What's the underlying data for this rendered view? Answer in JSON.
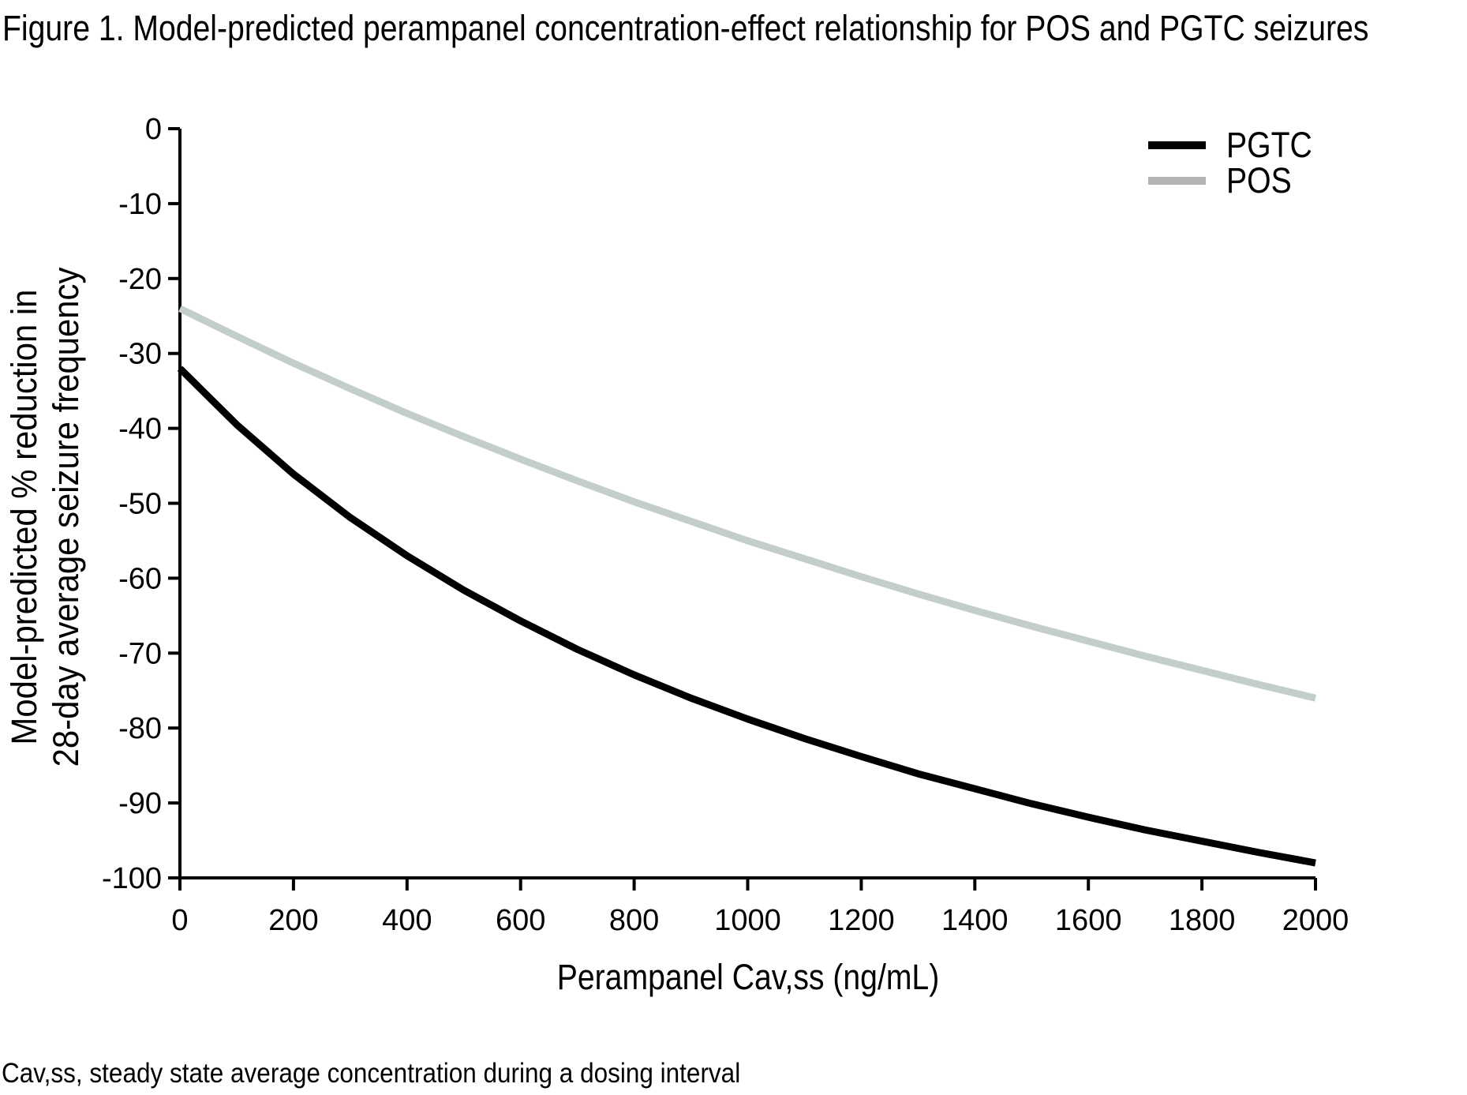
{
  "figure": {
    "title": "Figure 1. Model-predicted perampanel concentration-effect relationship for POS and PGTC seizures",
    "footnote": "Cav,ss, steady state average concentration during a dosing interval"
  },
  "chart_data": {
    "type": "line",
    "title": "Figure 1. Model-predicted perampanel concentration-effect relationship for POS and PGTC seizures",
    "xlabel": "Perampanel Cav,ss (ng/mL)",
    "ylabel": "Model-predicted % reduction in 28-day average seizure frequency",
    "ylabel_lines": [
      "Model-predicted % reduction in",
      "28-day average seizure frequency"
    ],
    "xlim": [
      0,
      2000
    ],
    "ylim": [
      -100,
      0
    ],
    "x_ticks": [
      0,
      200,
      400,
      600,
      800,
      1000,
      1200,
      1400,
      1600,
      1800,
      2000
    ],
    "y_ticks": [
      0,
      -10,
      -20,
      -30,
      -40,
      -50,
      -60,
      -70,
      -80,
      -90,
      -100
    ],
    "grid": false,
    "legend_position": "top-right",
    "axis_color": "#000000",
    "x": [
      0,
      100,
      200,
      300,
      400,
      500,
      600,
      700,
      800,
      900,
      1000,
      1100,
      1200,
      1300,
      1400,
      1500,
      1600,
      1700,
      1800,
      1900,
      2000
    ],
    "series": [
      {
        "name": "PGTC",
        "color": "#000000",
        "legend_color": "#000000",
        "values": [
          -32.0,
          -39.5,
          -46.1,
          -51.9,
          -57.0,
          -61.6,
          -65.7,
          -69.5,
          -72.9,
          -76.0,
          -78.8,
          -81.4,
          -83.8,
          -86.1,
          -88.1,
          -90.1,
          -91.9,
          -93.6,
          -95.1,
          -96.6,
          -98.0
        ]
      },
      {
        "name": "POS",
        "color": "#c3cdcb",
        "legend_color": "#b3b5b4",
        "values": [
          -24.0,
          -27.7,
          -31.3,
          -34.7,
          -38.0,
          -41.1,
          -44.1,
          -47.0,
          -49.8,
          -52.4,
          -55.0,
          -57.4,
          -59.8,
          -62.1,
          -64.3,
          -66.4,
          -68.4,
          -70.4,
          -72.3,
          -74.2,
          -76.0
        ]
      }
    ]
  }
}
